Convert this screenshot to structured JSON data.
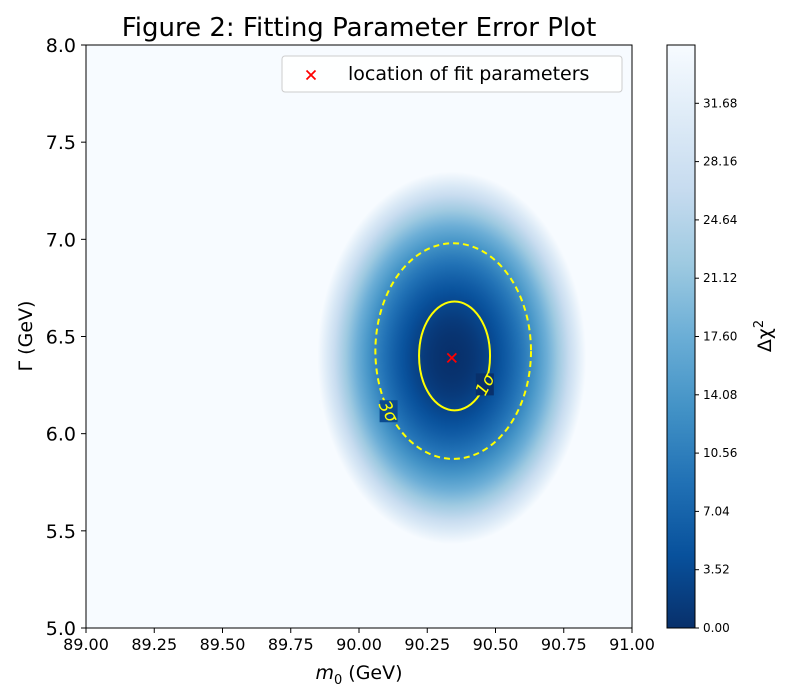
{
  "chart_data": {
    "type": "heatmap",
    "title": "Figure 2: Fitting Parameter Error Plot",
    "xlabel_main": "m",
    "xlabel_sub": "0",
    "xlabel_unit": " (GeV)",
    "ylabel": "Γ (GeV)",
    "colorbar_label_main": "Δχ",
    "colorbar_label_sup": "2",
    "xlim": [
      89.0,
      91.0
    ],
    "ylim": [
      5.0,
      8.0
    ],
    "x_ticks": [
      "89.00",
      "89.25",
      "89.50",
      "89.75",
      "90.00",
      "90.25",
      "90.50",
      "90.75",
      "91.00"
    ],
    "y_ticks": [
      "5.0",
      "5.5",
      "6.0",
      "6.5",
      "7.0",
      "7.5",
      "8.0"
    ],
    "colorbar_ticks": [
      "0.00",
      "3.52",
      "7.04",
      "10.56",
      "14.08",
      "17.60",
      "21.12",
      "24.64",
      "28.16",
      "31.68"
    ],
    "colorbar_range": [
      0.0,
      35.2
    ],
    "colormap": [
      "#08306b",
      "#08519c",
      "#2171b5",
      "#4292c6",
      "#6baed6",
      "#9ecae1",
      "#c6dbef",
      "#deebf7",
      "#f7fbff"
    ],
    "best_fit": {
      "m0": 90.34,
      "gamma": 6.39,
      "color": "#ff0000",
      "marker": "x"
    },
    "contours": [
      {
        "label": "1σ",
        "style": "solid",
        "color": "#ffff00",
        "delta_chi2": 2.3,
        "m0_range": [
          90.22,
          90.48
        ],
        "gamma_range": [
          6.12,
          6.68
        ]
      },
      {
        "label": "3σ",
        "style": "dashed",
        "color": "#ffff00",
        "delta_chi2": 11.8,
        "m0_range": [
          90.06,
          90.63
        ],
        "gamma_range": [
          5.87,
          6.98
        ]
      }
    ],
    "legend": {
      "entries": [
        "location of fit parameters"
      ],
      "position": "top-right"
    }
  }
}
